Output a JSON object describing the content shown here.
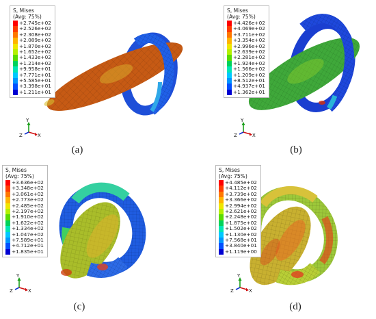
{
  "panels": [
    {
      "caption": "(a)",
      "legend": {
        "title_line1": "S, Mises",
        "title_line2": "(Avg: 75%)",
        "values": [
          "+2.745e+02",
          "+2.526e+02",
          "+2.308e+02",
          "+2.089e+02",
          "+1.870e+02",
          "+1.652e+02",
          "+1.433e+02",
          "+1.214e+02",
          "+9.958e+01",
          "+7.771e+01",
          "+5.585e+01",
          "+3.398e+01",
          "+1.211e+01"
        ]
      },
      "triad": {
        "y": "Y",
        "z": "Z",
        "x": "X"
      }
    },
    {
      "caption": "(b)",
      "legend": {
        "title_line1": "S, Mises",
        "title_line2": "(Avg: 75%)",
        "values": [
          "+4.426e+02",
          "+4.069e+02",
          "+3.711e+02",
          "+3.354e+02",
          "+2.996e+02",
          "+2.639e+02",
          "+2.281e+02",
          "+1.924e+02",
          "+1.566e+02",
          "+1.209e+02",
          "+8.512e+01",
          "+4.937e+01",
          "+1.362e+01"
        ]
      },
      "triad": {
        "y": "Y",
        "z": "Z",
        "x": "X"
      }
    },
    {
      "caption": "(c)",
      "legend": {
        "title_line1": "S, Mises",
        "title_line2": "(Avg: 75%)",
        "values": [
          "+3.636e+02",
          "+3.348e+02",
          "+3.061e+02",
          "+2.773e+02",
          "+2.485e+02",
          "+2.197e+02",
          "+1.910e+02",
          "+1.622e+02",
          "+1.334e+02",
          "+1.047e+02",
          "+7.589e+01",
          "+4.712e+01",
          "+1.835e+01"
        ]
      },
      "triad": {
        "y": "Y",
        "z": "Z",
        "x": "X"
      }
    },
    {
      "caption": "(d)",
      "legend": {
        "title_line1": "S, Mises",
        "title_line2": "(Avg: 75%)",
        "values": [
          "+4.485e+02",
          "+4.112e+02",
          "+3.739e+02",
          "+3.366e+02",
          "+2.994e+02",
          "+2.621e+02",
          "+2.248e+02",
          "+1.875e+02",
          "+1.502e+02",
          "+1.130e+02",
          "+7.568e+01",
          "+3.840e+01",
          "+1.119e+00"
        ]
      },
      "triad": {
        "y": "Y",
        "z": "Z",
        "x": "X"
      }
    }
  ],
  "contour_colors": [
    "#ff0000",
    "#ff4600",
    "#ff8c00",
    "#ffc800",
    "#e6e600",
    "#b4ff00",
    "#64ff00",
    "#00e650",
    "#00ffc8",
    "#00c8ff",
    "#0078ff",
    "#0032ff",
    "#0000c8"
  ],
  "legend_swatch_colors": [
    "#ff0000",
    "#ff3c00",
    "#ff7800",
    "#ffb400",
    "#f0e600",
    "#b4f000",
    "#5adc00",
    "#00d25a",
    "#00e6b4",
    "#00c8ff",
    "#0096ff",
    "#0050ff",
    "#0000d2"
  ]
}
